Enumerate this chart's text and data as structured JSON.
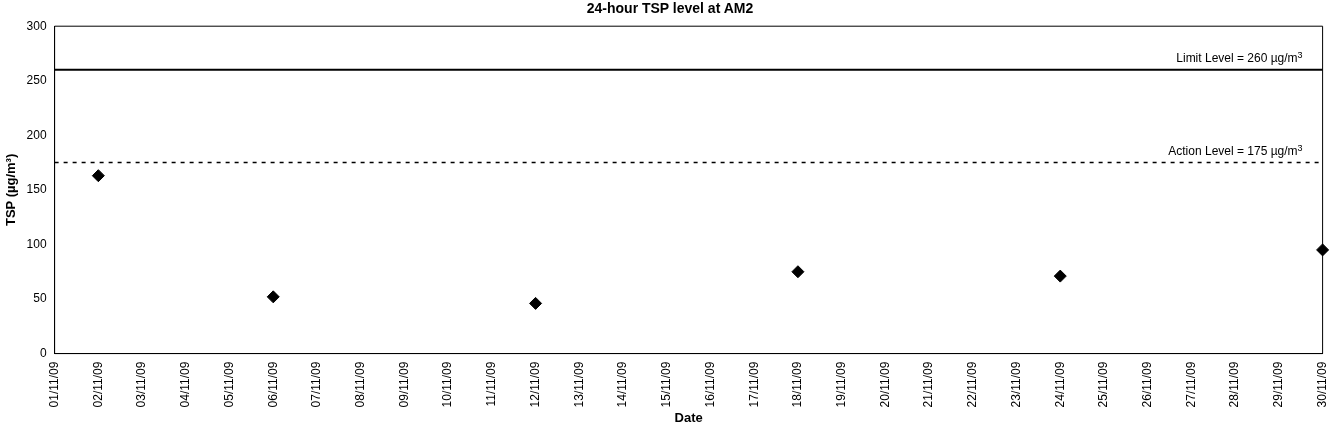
{
  "chart_data": {
    "type": "scatter",
    "title": "24-hour TSP level at AM2",
    "xlabel": "Date",
    "ylabel": "TSP (µg/m³)",
    "categories": [
      "01/11/09",
      "02/11/09",
      "03/11/09",
      "04/11/09",
      "05/11/09",
      "06/11/09",
      "07/11/09",
      "08/11/09",
      "09/11/09",
      "10/11/09",
      "11/11/09",
      "12/11/09",
      "13/11/09",
      "14/11/09",
      "15/11/09",
      "16/11/09",
      "17/11/09",
      "18/11/09",
      "19/11/09",
      "20/11/09",
      "21/11/09",
      "22/11/09",
      "23/11/09",
      "24/11/09",
      "25/11/09",
      "26/11/09",
      "27/11/09",
      "28/11/09",
      "29/11/09",
      "30/11/09"
    ],
    "values": [
      null,
      163,
      null,
      null,
      null,
      52,
      null,
      null,
      null,
      null,
      null,
      46,
      null,
      null,
      null,
      null,
      null,
      75,
      null,
      null,
      null,
      null,
      null,
      71,
      null,
      null,
      null,
      null,
      null,
      95
    ],
    "color": "#000000",
    "marker": "diamond",
    "ylim": [
      0,
      300
    ],
    "yticks": [
      0,
      50,
      100,
      150,
      200,
      250,
      300
    ],
    "grid": false,
    "legend": false,
    "ref_lines": [
      {
        "axis": "y",
        "value": 260,
        "label": "Limit Level = 260 µg/m$^{3}$",
        "color": "#000000",
        "line_style": "solid"
      },
      {
        "axis": "y",
        "value": 175,
        "label": "Action Level = 175 µg/m$^{3}$",
        "color": "#000000",
        "line_style": "dashed"
      }
    ]
  }
}
